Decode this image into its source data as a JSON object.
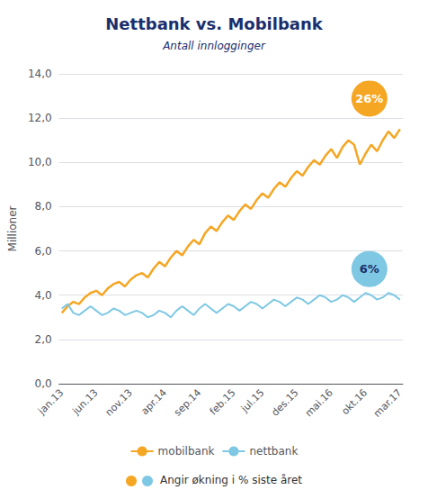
{
  "chart_data": {
    "type": "line",
    "title": "Nettbank vs. Mobilbank",
    "subtitle": "Antall innlogginger",
    "title_color": "#1a2e6c",
    "ylabel": "Millioner",
    "categories": [
      "jan.13",
      null,
      null,
      null,
      null,
      null,
      "jun.13",
      null,
      null,
      null,
      null,
      null,
      "nov.13",
      null,
      null,
      null,
      null,
      null,
      "apr.14",
      null,
      null,
      null,
      null,
      null,
      "sep.14",
      null,
      null,
      null,
      null,
      null,
      "feb.15",
      null,
      null,
      null,
      null,
      "jul.15",
      null,
      null,
      null,
      null,
      null,
      "des.15",
      null,
      null,
      null,
      null,
      null,
      "mai.16",
      null,
      null,
      null,
      null,
      null,
      "okt.16",
      null,
      null,
      null,
      null,
      null,
      "mar.17"
    ],
    "series": [
      {
        "name": "mobilbank",
        "color": "#f5a623",
        "annotation": "26%",
        "values": [
          3.2,
          3.5,
          3.7,
          3.6,
          3.9,
          4.1,
          4.2,
          4.0,
          4.3,
          4.5,
          4.6,
          4.4,
          4.7,
          4.9,
          5.0,
          4.8,
          5.2,
          5.5,
          5.3,
          5.7,
          6.0,
          5.8,
          6.2,
          6.5,
          6.3,
          6.8,
          7.1,
          6.9,
          7.3,
          7.6,
          7.4,
          7.8,
          8.1,
          7.9,
          8.3,
          8.6,
          8.4,
          8.8,
          9.1,
          8.9,
          9.3,
          9.6,
          9.4,
          9.8,
          10.1,
          9.9,
          10.3,
          10.6,
          10.2,
          10.7,
          11.0,
          10.8,
          9.9,
          10.4,
          10.8,
          10.5,
          11.0,
          11.4,
          11.1,
          11.5
        ]
      },
      {
        "name": "nettbank",
        "color": "#7ec8e3",
        "annotation": "6%",
        "values": [
          3.4,
          3.6,
          3.2,
          3.1,
          3.3,
          3.5,
          3.3,
          3.1,
          3.2,
          3.4,
          3.3,
          3.1,
          3.2,
          3.3,
          3.2,
          3.0,
          3.1,
          3.3,
          3.2,
          3.0,
          3.3,
          3.5,
          3.3,
          3.1,
          3.4,
          3.6,
          3.4,
          3.2,
          3.4,
          3.6,
          3.5,
          3.3,
          3.5,
          3.7,
          3.6,
          3.4,
          3.6,
          3.8,
          3.7,
          3.5,
          3.7,
          3.9,
          3.8,
          3.6,
          3.8,
          4.0,
          3.9,
          3.7,
          3.8,
          4.0,
          3.9,
          3.7,
          3.9,
          4.1,
          4.0,
          3.8,
          3.9,
          4.1,
          4.0,
          3.8
        ]
      }
    ],
    "annotation": "Angir økning i % siste året",
    "ylim": [
      0,
      14.0
    ],
    "yticks": [
      {
        "value": 0.0,
        "label": "0,0"
      },
      {
        "value": 2.0,
        "label": "2,0"
      },
      {
        "value": 4.0,
        "label": "4,0"
      },
      {
        "value": 6.0,
        "label": "6,0"
      },
      {
        "value": 8.0,
        "label": "8,0"
      },
      {
        "value": 10.0,
        "label": "10,0"
      },
      {
        "value": 12.0,
        "label": "12,0"
      },
      {
        "value": 14.0,
        "label": "14,0"
      }
    ],
    "grid": true,
    "legend": "bottom"
  }
}
